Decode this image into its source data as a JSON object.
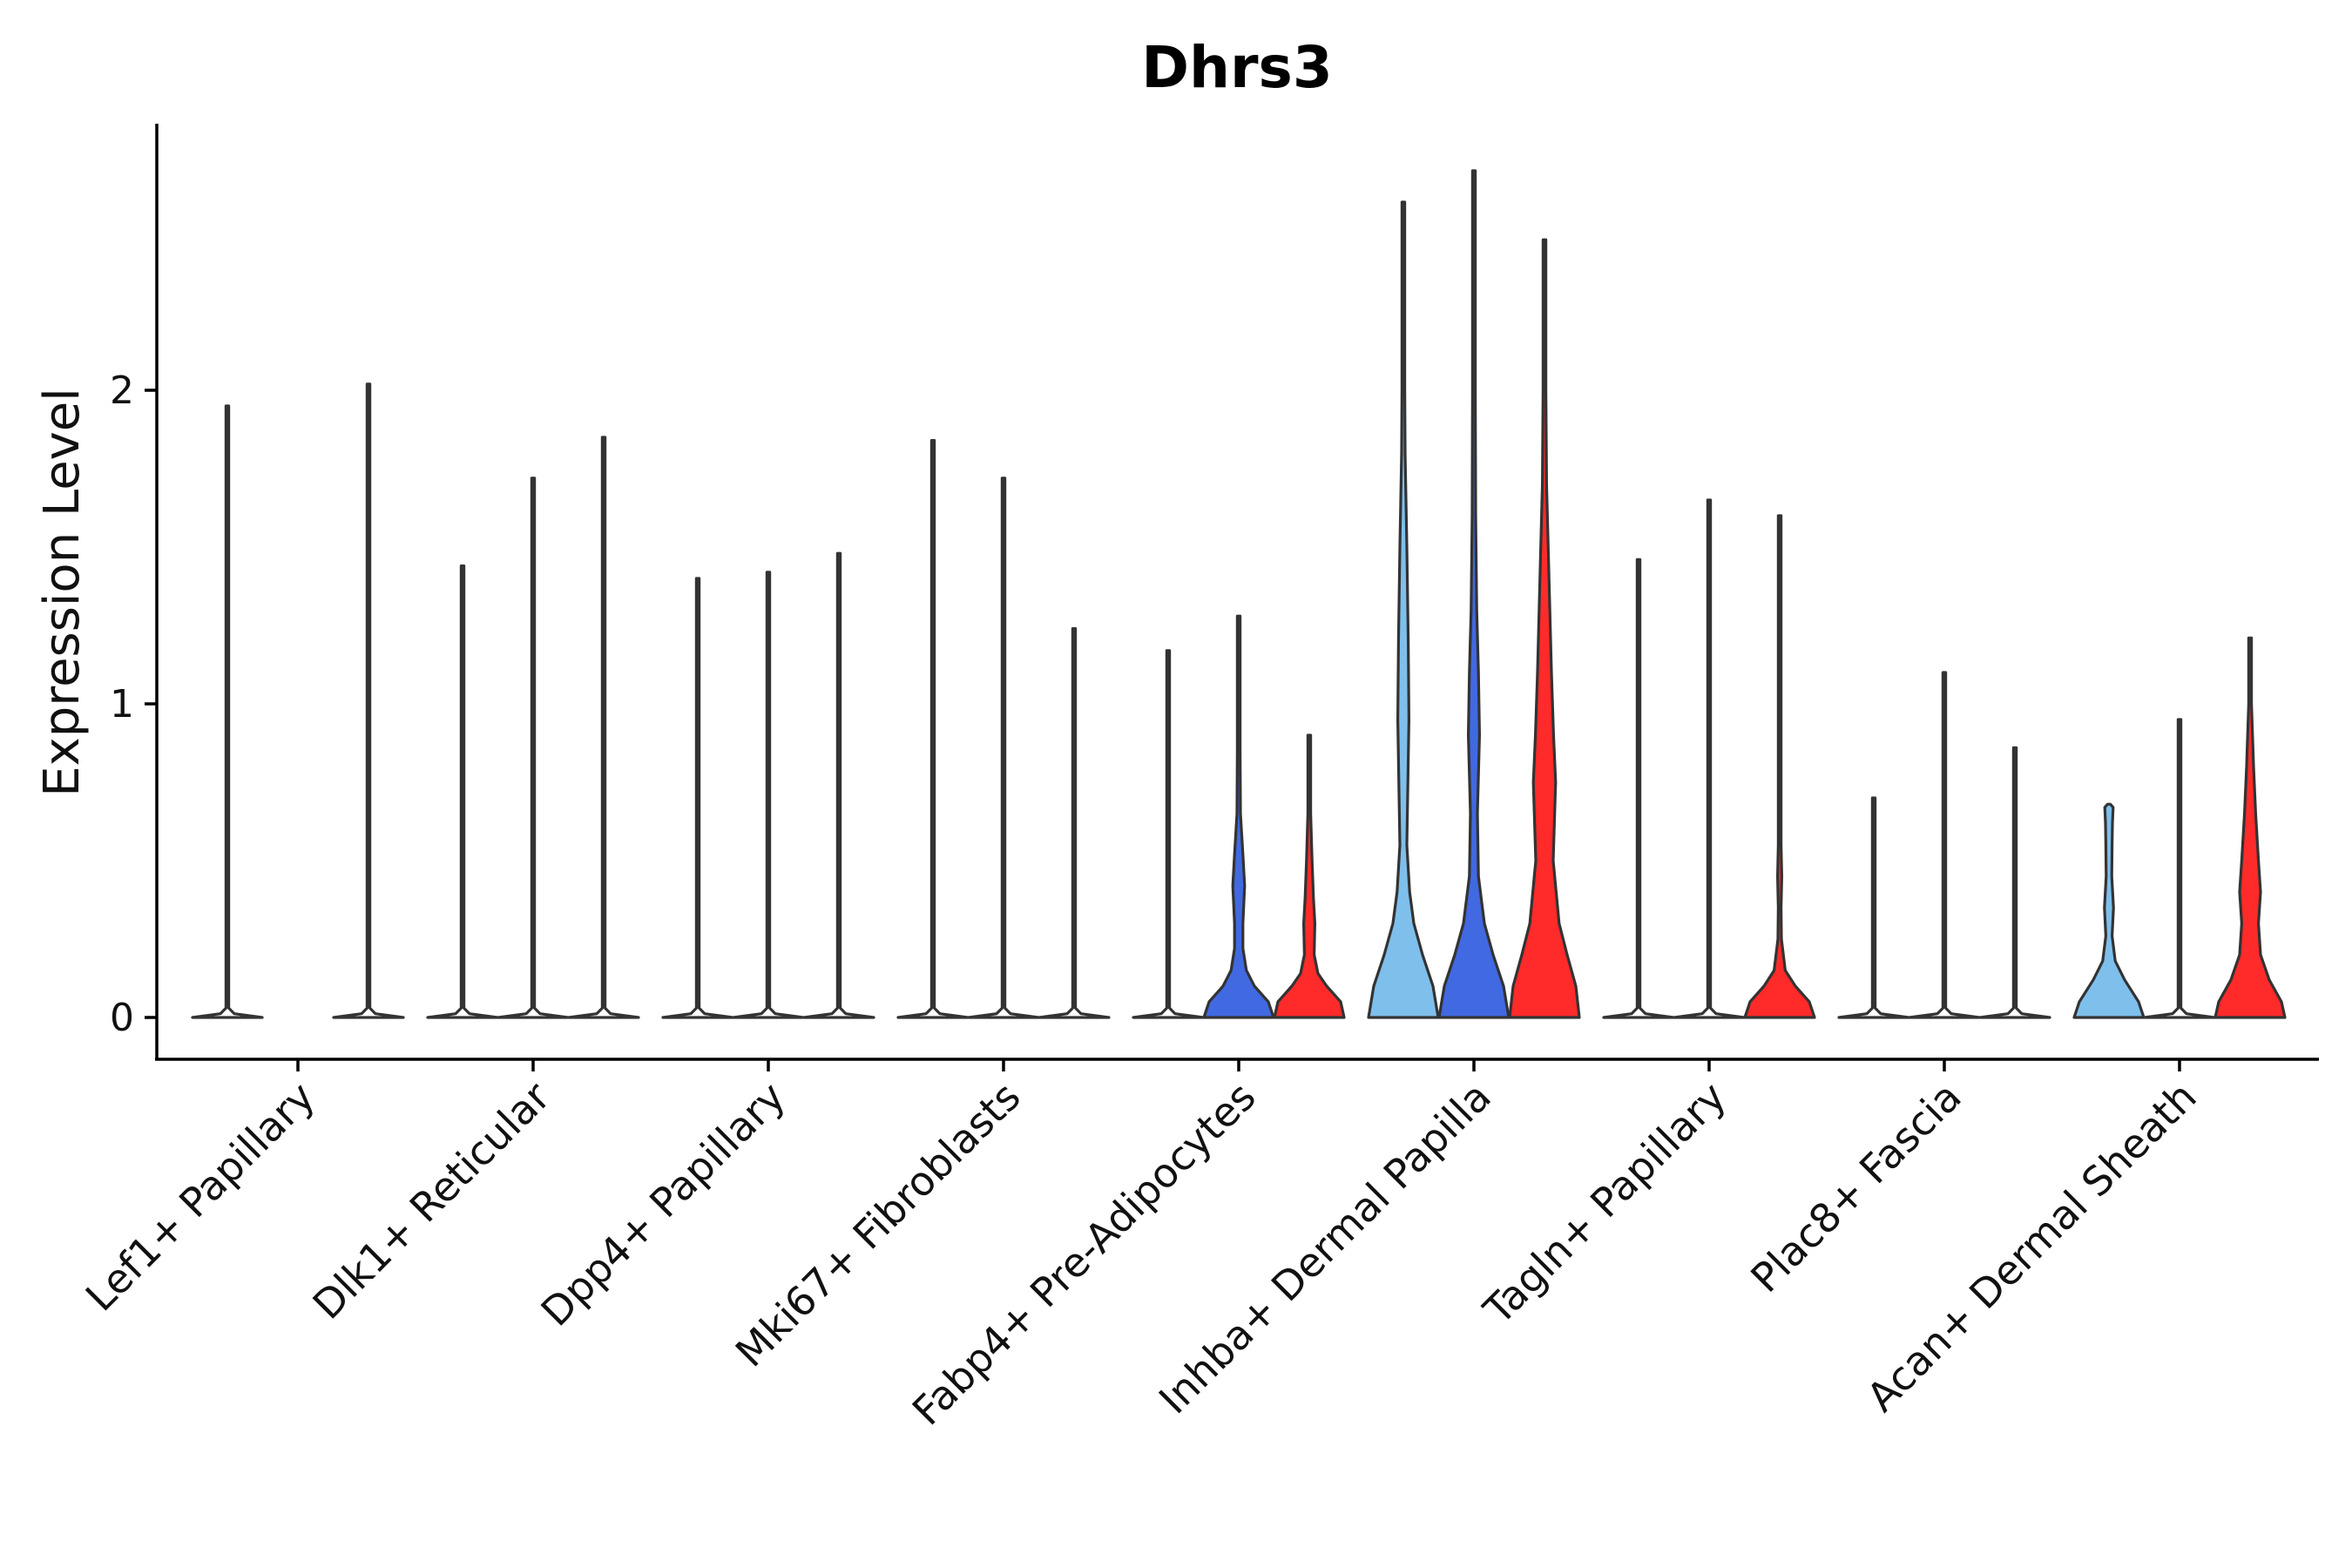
{
  "chart_data": {
    "type": "violin",
    "title": "Dhrs3",
    "xlabel": "",
    "ylabel": "Expression Level",
    "ylim": [
      -0.14,
      2.85
    ],
    "yticks": [
      "0",
      "1",
      "2"
    ],
    "ytick_values": [
      0,
      1,
      2
    ],
    "grid": false,
    "legend": "none",
    "categories": [
      "Lef1+ Papillary",
      "Dlk1+ Reticular",
      "Dpp4+ Papillary",
      "Mki67+ Fibroblasts",
      "Fabp4+ Pre-Adipocytes",
      "Inhba+ Dermal Papilla",
      "Tagln+ Papillary",
      "Plac8+ Fascia",
      "Acan+ Dermal Sheath"
    ],
    "series": [
      {
        "name": "group 1",
        "color": "#7fbfec",
        "max_values": [
          1.95,
          1.44,
          1.4,
          1.84,
          1.17,
          2.6,
          1.46,
          0.7,
          0.68
        ],
        "shape": [
          "flat",
          "flat",
          "flat",
          "flat",
          "flat",
          "inhba1",
          "flat",
          "flat",
          "acan1"
        ]
      },
      {
        "name": "group 2",
        "color": "#4169e1",
        "max_values": [
          0,
          1.72,
          1.42,
          1.72,
          1.28,
          2.7,
          1.65,
          1.1,
          0.95
        ],
        "shape": [
          "none",
          "flat",
          "flat",
          "flat",
          "fabp2",
          "inhba2",
          "flat",
          "flat",
          "flat"
        ]
      },
      {
        "name": "group 3",
        "color": "#ff2a2a",
        "max_values": [
          2.02,
          1.85,
          1.48,
          1.24,
          0.9,
          2.48,
          1.6,
          0.86,
          1.21
        ],
        "shape": [
          "flat",
          "flat",
          "flat",
          "flat",
          "fabp3",
          "inhba3",
          "tagln3",
          "flat",
          "acan3"
        ]
      }
    ]
  }
}
